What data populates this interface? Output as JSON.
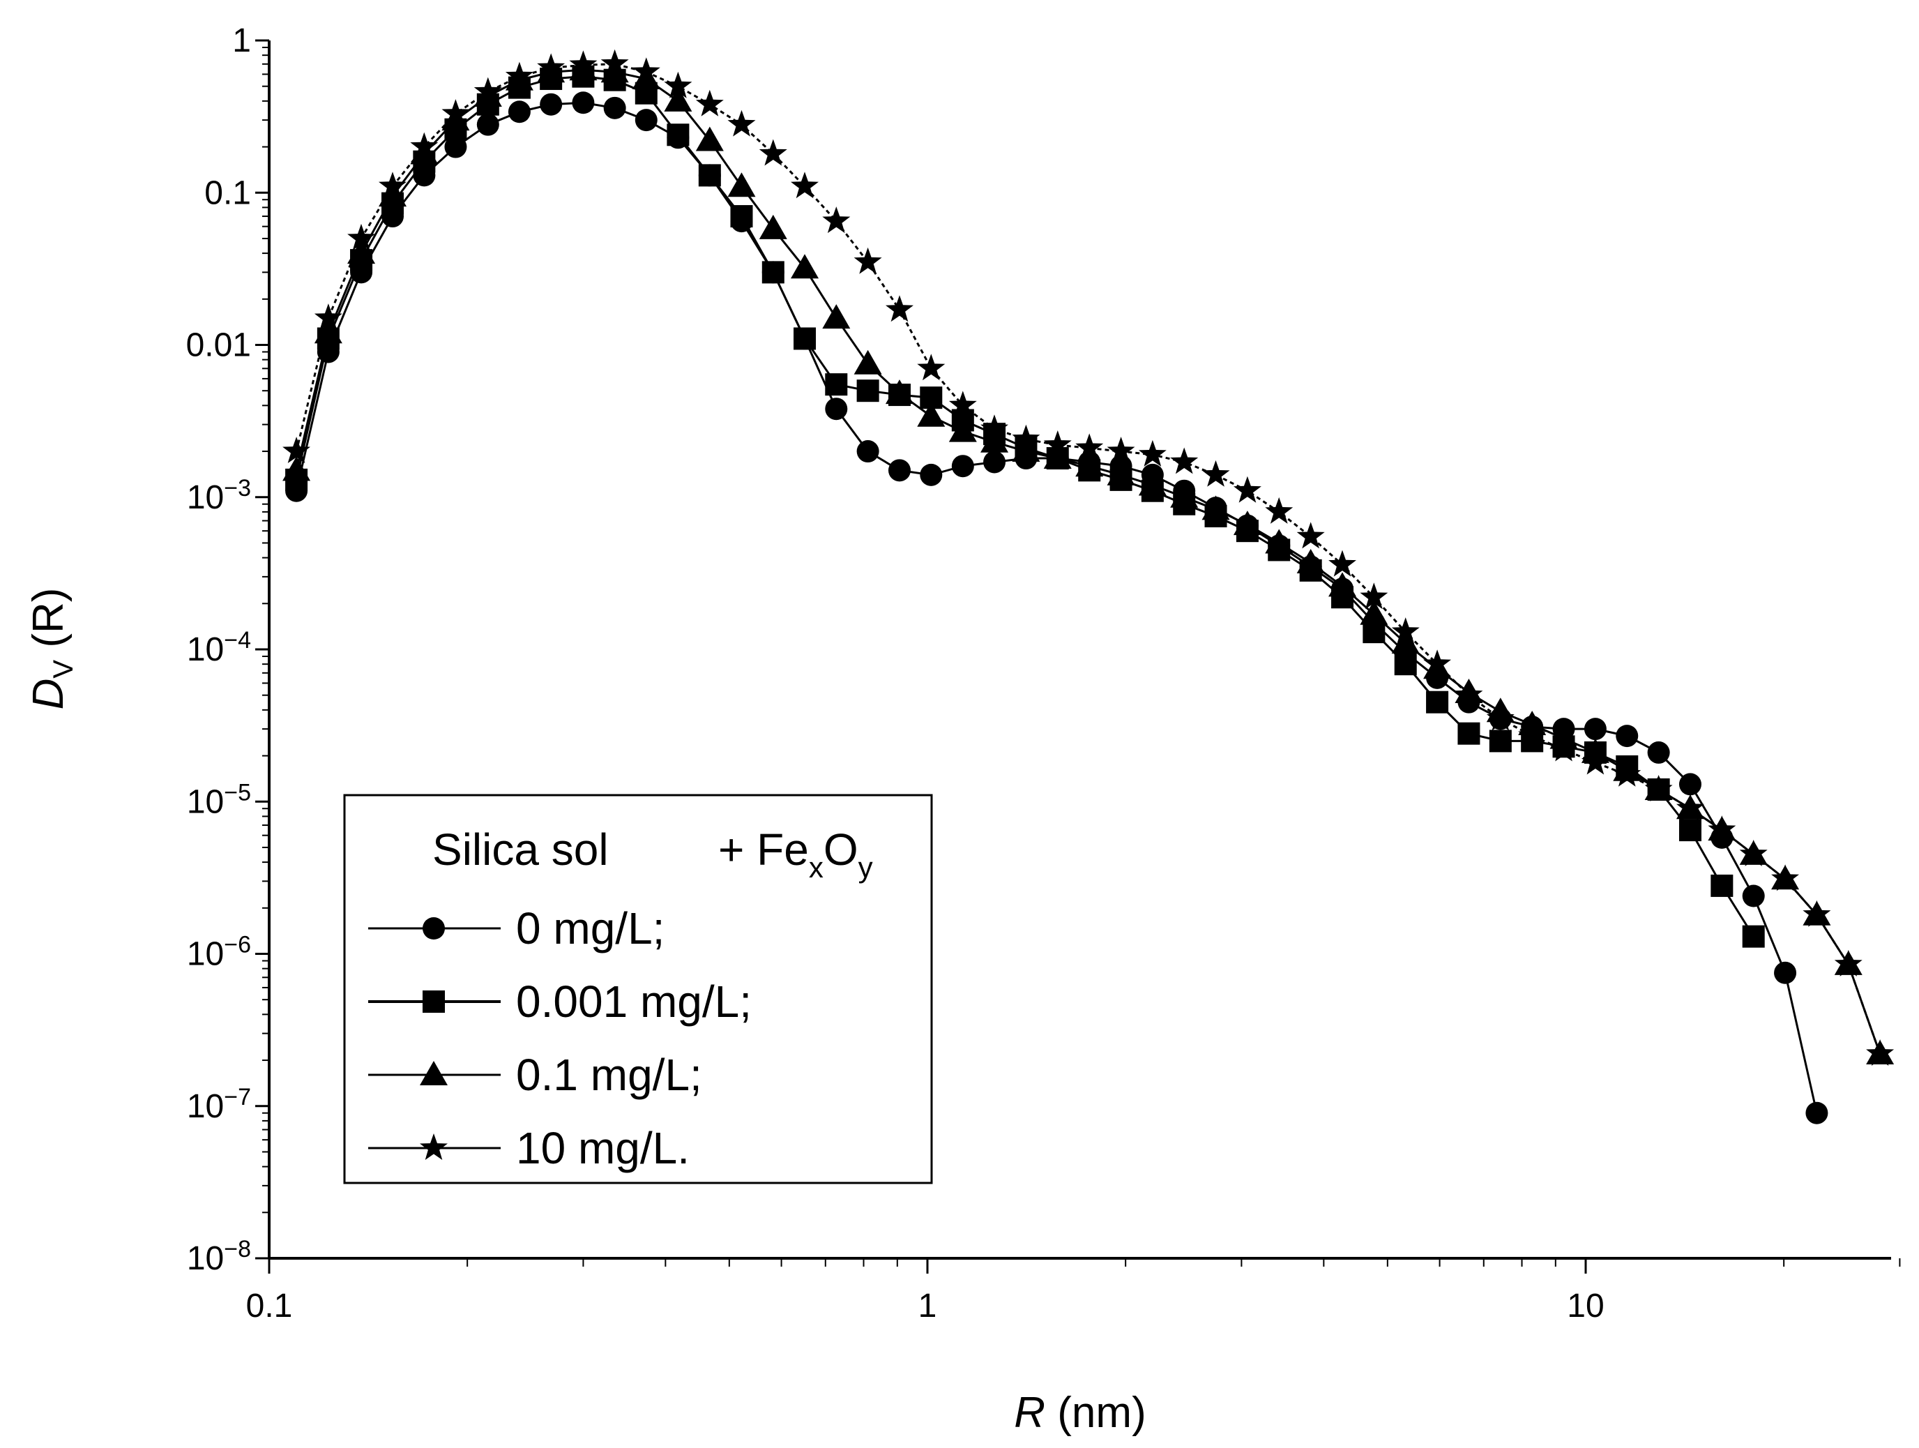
{
  "chart_data": {
    "type": "scatter",
    "title": "",
    "xlabel": {
      "var": "R",
      "unit": " (nm)"
    },
    "ylabel": {
      "var": "D",
      "sub": "V",
      "rest": " (R)"
    },
    "x_scale": "log",
    "y_scale": "log",
    "xlim": [
      0.1,
      30
    ],
    "ylim": [
      1e-08,
      1
    ],
    "grid": false,
    "legend_placement": "bottom-left",
    "x_ticks": [
      {
        "value": 0.1,
        "label": "0.1"
      },
      {
        "value": 1,
        "label": "1"
      },
      {
        "value": 10,
        "label": "10"
      }
    ],
    "y_ticks": [
      {
        "value": 1,
        "label": "1"
      },
      {
        "value": 0.1,
        "label": "0.1"
      },
      {
        "value": 0.01,
        "label": "0.01"
      },
      {
        "value": 0.001,
        "label": "10",
        "exp": "−3"
      },
      {
        "value": 0.0001,
        "label": "10",
        "exp": "−4"
      },
      {
        "value": 1e-05,
        "label": "10",
        "exp": "−5"
      },
      {
        "value": 1e-06,
        "label": "10",
        "exp": "−6"
      },
      {
        "value": 1e-07,
        "label": "10",
        "exp": "−7"
      },
      {
        "value": 1e-08,
        "label": "10",
        "exp": "−8"
      }
    ],
    "legend": {
      "header_left": "Silica sol",
      "header_right": {
        "text": "+ Fe",
        "sub1": "x",
        "mid": "O",
        "sub2": "y"
      }
    },
    "series": [
      {
        "name": "0 mg/L;",
        "marker": "circle",
        "line": "solid",
        "x": [
          0.11,
          0.123,
          0.138,
          0.154,
          0.172,
          0.192,
          0.215,
          0.24,
          0.268,
          0.3,
          0.335,
          0.374,
          0.418,
          0.467,
          0.522,
          0.583,
          0.651,
          0.727,
          0.812,
          0.907,
          1.013,
          1.132,
          1.264,
          1.412,
          1.577,
          1.762,
          1.968,
          2.198,
          2.455,
          2.742,
          3.063,
          3.421,
          3.822,
          4.269,
          4.768,
          5.326,
          5.949,
          6.645,
          7.423,
          8.291,
          9.261,
          10.345,
          11.555,
          12.907,
          14.417,
          16.104,
          17.988,
          20.092,
          22.443
        ],
        "y": [
          0.0011,
          0.009,
          0.03,
          0.07,
          0.13,
          0.2,
          0.28,
          0.34,
          0.38,
          0.39,
          0.36,
          0.3,
          0.23,
          0.13,
          0.065,
          0.03,
          0.011,
          0.0038,
          0.002,
          0.0015,
          0.0014,
          0.0016,
          0.0017,
          0.0018,
          0.0018,
          0.0017,
          0.0016,
          0.0014,
          0.0011,
          0.00085,
          0.00065,
          0.00048,
          0.00035,
          0.00025,
          0.00015,
          9.5e-05,
          6.5e-05,
          4.5e-05,
          3.5e-05,
          3.1e-05,
          3e-05,
          3e-05,
          2.7e-05,
          2.1e-05,
          1.3e-05,
          5.8e-06,
          2.4e-06,
          7.5e-07,
          9e-08
        ]
      },
      {
        "name": "0.001 mg/L;",
        "marker": "square",
        "line": "solid",
        "x": [
          0.11,
          0.123,
          0.138,
          0.154,
          0.172,
          0.192,
          0.215,
          0.24,
          0.268,
          0.3,
          0.335,
          0.374,
          0.418,
          0.467,
          0.522,
          0.583,
          0.651,
          0.727,
          0.812,
          0.907,
          1.013,
          1.132,
          1.264,
          1.412,
          1.577,
          1.762,
          1.968,
          2.198,
          2.455,
          2.742,
          3.063,
          3.421,
          3.822,
          4.269,
          4.768,
          5.326,
          5.949,
          6.645,
          7.423,
          8.291,
          9.261,
          10.345,
          11.555,
          12.907,
          14.417,
          16.104,
          17.988
        ],
        "y": [
          0.0013,
          0.011,
          0.036,
          0.085,
          0.16,
          0.26,
          0.38,
          0.49,
          0.56,
          0.58,
          0.55,
          0.45,
          0.24,
          0.13,
          0.07,
          0.03,
          0.011,
          0.0055,
          0.005,
          0.0047,
          0.0045,
          0.0032,
          0.0026,
          0.0021,
          0.0018,
          0.0015,
          0.0013,
          0.0011,
          0.0009,
          0.00075,
          0.0006,
          0.00045,
          0.00033,
          0.00022,
          0.00013,
          8e-05,
          4.5e-05,
          2.8e-05,
          2.5e-05,
          2.5e-05,
          2.3e-05,
          2.1e-05,
          1.7e-05,
          1.2e-05,
          6.5e-06,
          2.8e-06,
          1.3e-06
        ]
      },
      {
        "name": "0.1 mg/L;",
        "marker": "triangle",
        "line": "solid",
        "x": [
          0.11,
          0.123,
          0.138,
          0.154,
          0.172,
          0.192,
          0.215,
          0.24,
          0.268,
          0.3,
          0.335,
          0.374,
          0.418,
          0.467,
          0.522,
          0.583,
          0.651,
          0.727,
          0.812,
          0.907,
          1.013,
          1.132,
          1.264,
          1.412,
          1.577,
          1.762,
          1.968,
          2.198,
          2.455,
          2.742,
          3.063,
          3.421,
          3.822,
          4.269,
          4.768,
          5.326,
          5.949,
          6.645,
          7.423,
          8.291,
          9.261,
          10.345,
          11.555,
          12.907,
          14.417,
          16.104,
          17.988,
          20.092,
          22.443,
          25.068,
          28.0
        ],
        "y": [
          0.0015,
          0.012,
          0.04,
          0.095,
          0.18,
          0.3,
          0.43,
          0.55,
          0.62,
          0.64,
          0.62,
          0.56,
          0.4,
          0.22,
          0.11,
          0.058,
          0.032,
          0.015,
          0.0075,
          0.0048,
          0.0034,
          0.0027,
          0.0023,
          0.002,
          0.0018,
          0.0016,
          0.0014,
          0.0012,
          0.001,
          0.00083,
          0.00066,
          0.0005,
          0.00037,
          0.00026,
          0.00017,
          0.00011,
          7.5e-05,
          5.2e-05,
          3.9e-05,
          3.2e-05,
          2.6e-05,
          2.1e-05,
          1.6e-05,
          1.2e-05,
          9e-06,
          6.5e-06,
          4.5e-06,
          3.1e-06,
          1.8e-06,
          8.5e-07,
          2.2e-07
        ]
      },
      {
        "name": "10 mg/L.",
        "marker": "star",
        "line": "dashed",
        "x": [
          0.11,
          0.123,
          0.138,
          0.154,
          0.172,
          0.192,
          0.215,
          0.24,
          0.268,
          0.3,
          0.335,
          0.374,
          0.418,
          0.467,
          0.522,
          0.583,
          0.651,
          0.727,
          0.812,
          0.907,
          1.013,
          1.132,
          1.264,
          1.412,
          1.577,
          1.762,
          1.968,
          2.198,
          2.455,
          2.742,
          3.063,
          3.421,
          3.822,
          4.269,
          4.768,
          5.326,
          5.949,
          6.645,
          7.423,
          8.291,
          9.261,
          10.345,
          11.555,
          12.907,
          14.417,
          16.104,
          17.988,
          20.092,
          22.443,
          25.068,
          28.0
        ],
        "y": [
          0.002,
          0.015,
          0.05,
          0.11,
          0.2,
          0.33,
          0.46,
          0.58,
          0.66,
          0.69,
          0.7,
          0.62,
          0.5,
          0.38,
          0.28,
          0.18,
          0.11,
          0.065,
          0.035,
          0.017,
          0.007,
          0.004,
          0.0028,
          0.0024,
          0.0022,
          0.0021,
          0.002,
          0.0019,
          0.0017,
          0.0014,
          0.0011,
          0.0008,
          0.00055,
          0.00036,
          0.00022,
          0.00013,
          8e-05,
          5e-05,
          3.5e-05,
          2.7e-05,
          2.2e-05,
          1.8e-05,
          1.5e-05,
          1.2e-05,
          9e-06,
          6.5e-06,
          4.5e-06,
          3.1e-06,
          1.8e-06,
          8.5e-07,
          2.2e-07
        ]
      }
    ]
  }
}
